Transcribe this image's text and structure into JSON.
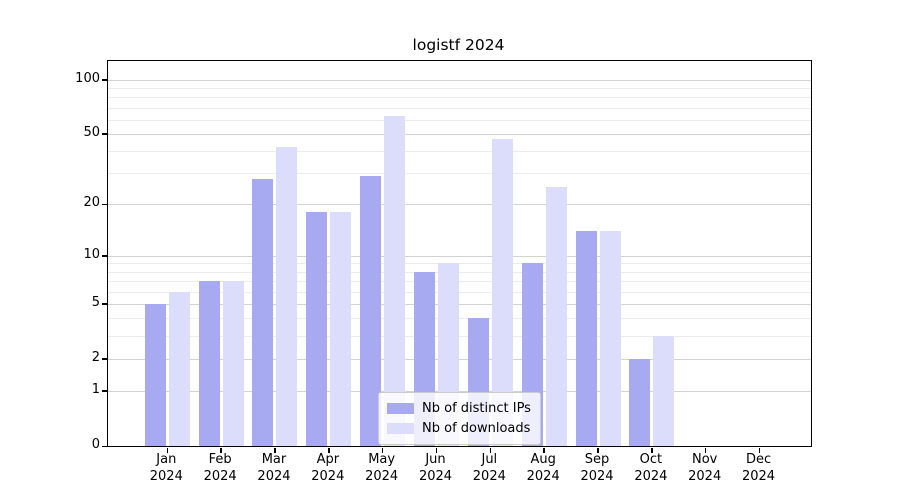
{
  "title": "logistf 2024",
  "chart_data": {
    "type": "bar",
    "title": "logistf 2024",
    "categories": [
      {
        "month": "Jan",
        "year": "2024"
      },
      {
        "month": "Feb",
        "year": "2024"
      },
      {
        "month": "Mar",
        "year": "2024"
      },
      {
        "month": "Apr",
        "year": "2024"
      },
      {
        "month": "May",
        "year": "2024"
      },
      {
        "month": "Jun",
        "year": "2024"
      },
      {
        "month": "Jul",
        "year": "2024"
      },
      {
        "month": "Aug",
        "year": "2024"
      },
      {
        "month": "Sep",
        "year": "2024"
      },
      {
        "month": "Oct",
        "year": "2024"
      },
      {
        "month": "Nov",
        "year": "2024"
      },
      {
        "month": "Dec",
        "year": "2024"
      }
    ],
    "series": [
      {
        "name": "Nb of distinct IPs",
        "color": "#a8aaf1",
        "values": [
          5,
          7,
          28,
          18,
          29,
          8,
          4,
          9,
          14,
          2,
          0,
          0
        ]
      },
      {
        "name": "Nb of downloads",
        "color": "#dcddfa",
        "values": [
          6,
          7,
          42,
          18,
          63,
          9,
          47,
          25,
          14,
          3,
          0,
          0
        ]
      }
    ],
    "y_axis": {
      "scale": "log1p",
      "tick_labels": [
        "100",
        "50",
        "20",
        "10",
        "5",
        "2",
        "1",
        "0"
      ],
      "major_gridlines": [
        100,
        50,
        20,
        10,
        5,
        2,
        1
      ],
      "minor_gridlines": [
        90,
        80,
        70,
        60,
        40,
        30,
        9,
        8,
        7,
        6,
        4,
        3
      ],
      "range": [
        0,
        130
      ]
    },
    "legend": {
      "position": "bottom-center"
    },
    "grid": true
  },
  "colors": {
    "bar_dark": "#a8aaf1",
    "bar_light": "#dcddfa",
    "grid_major": "#d2d2d2",
    "grid_minor": "#ececec",
    "axis": "#000000"
  }
}
